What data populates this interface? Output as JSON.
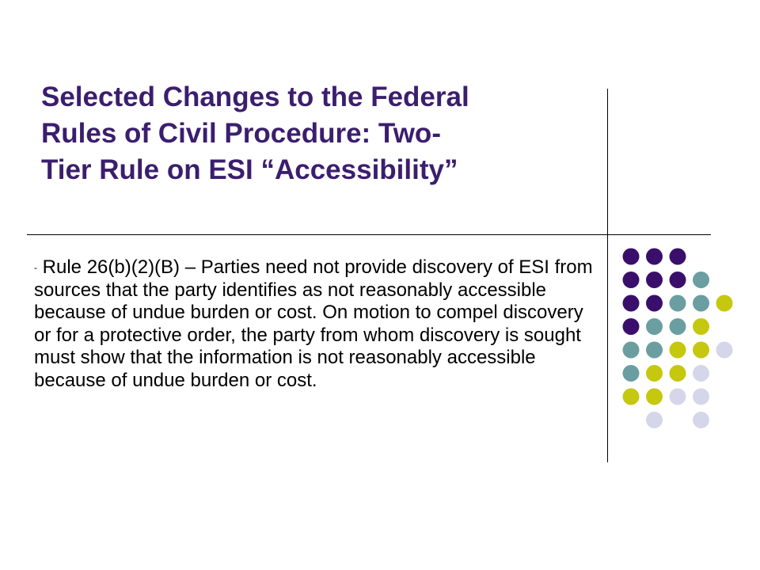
{
  "slide": {
    "title_lines": [
      "Selected Changes to the Federal",
      "Rules of Civil Procedure: Two-",
      "Tier Rule on ESI “Accessibility”"
    ],
    "bullet_marker": "-",
    "body_text": "Rule 26(b)(2)(B) – Parties need not provide discovery of ESI from sources that the party identifies as not reasonably accessible because of undue burden or cost.  On motion to compel discovery or for a protective order, the party from whom discovery is sought must show that the information is not reasonably accessible because of undue burden or cost."
  },
  "colors": {
    "title": "#3b1e6e",
    "dot_purple": "#3a0f6b",
    "dot_teal": "#6b9ea0",
    "dot_yellow": "#c6c70f",
    "dot_lavender": "#d6d6ea"
  },
  "dot_grid": {
    "rows": [
      [
        "purple",
        "purple",
        "purple",
        "",
        ""
      ],
      [
        "purple",
        "purple",
        "purple",
        "teal",
        ""
      ],
      [
        "purple",
        "purple",
        "teal",
        "teal",
        "yellow"
      ],
      [
        "purple",
        "teal",
        "teal",
        "yellow",
        ""
      ],
      [
        "teal",
        "teal",
        "yellow",
        "yellow",
        "lavender"
      ],
      [
        "teal",
        "yellow",
        "yellow",
        "lavender",
        ""
      ],
      [
        "yellow",
        "yellow",
        "lavender",
        "lavender",
        ""
      ],
      [
        "",
        "lavender",
        "",
        "lavender",
        ""
      ]
    ]
  }
}
